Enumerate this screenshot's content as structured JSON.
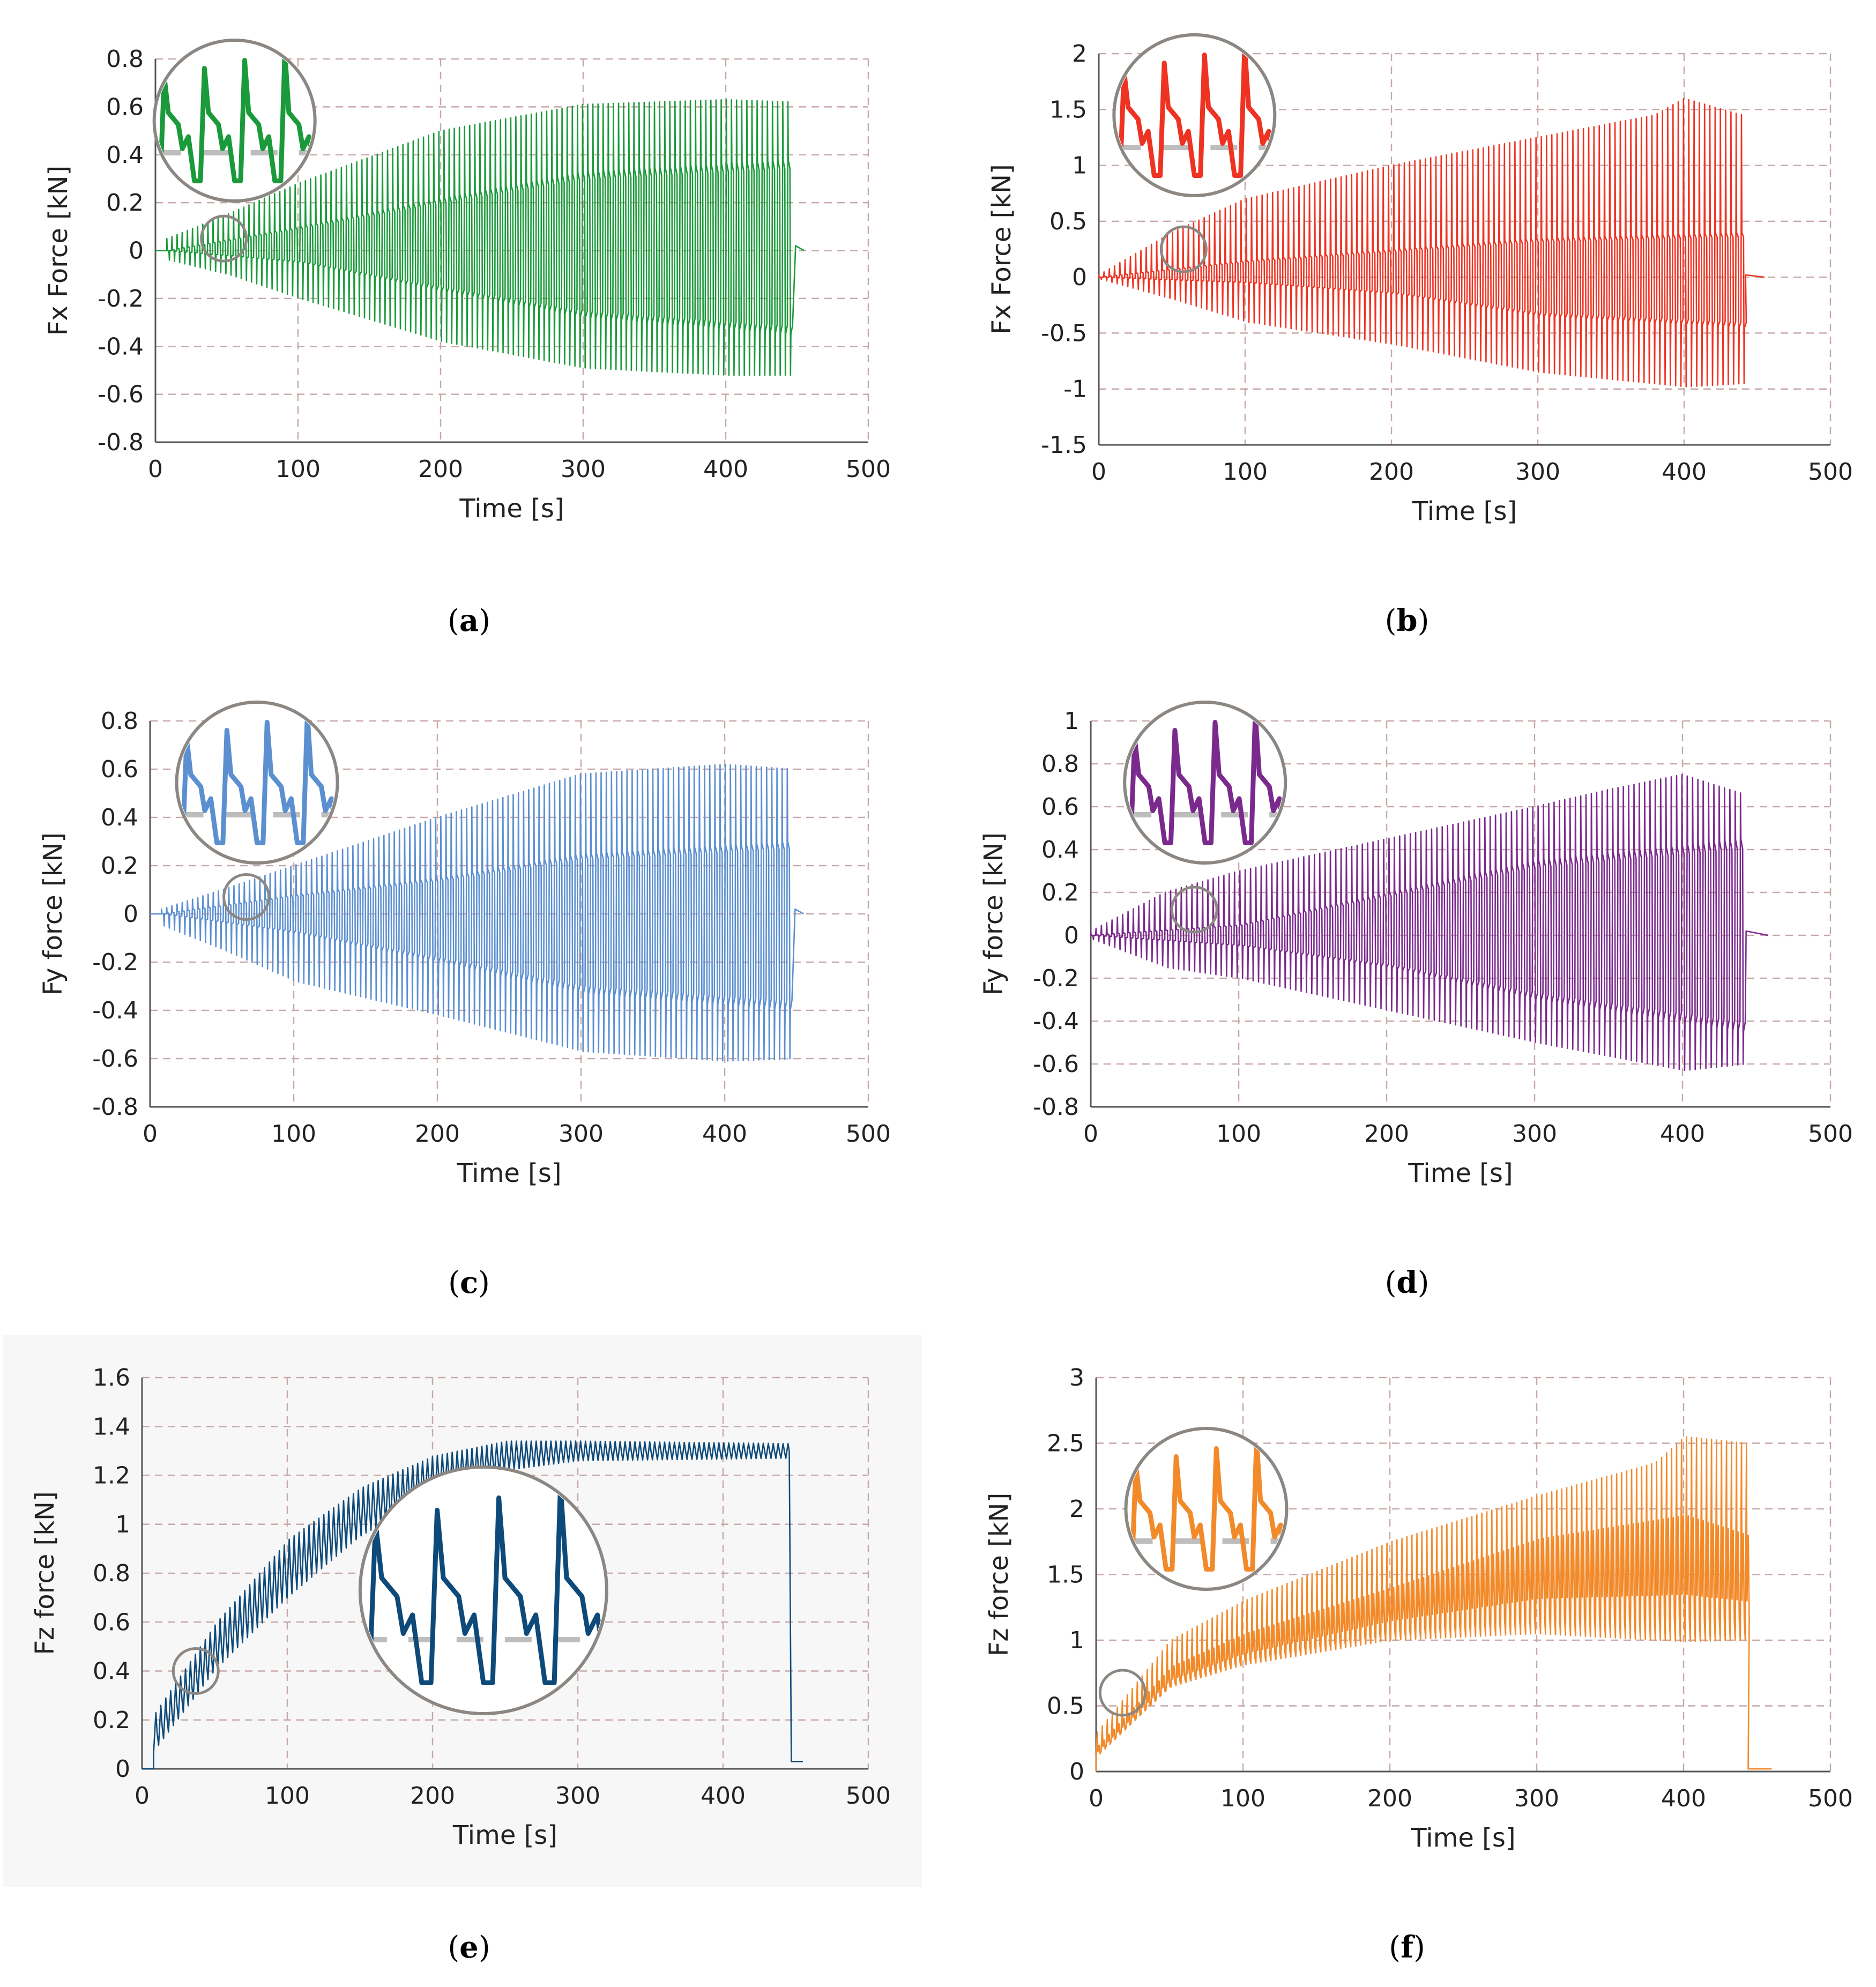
{
  "chart_data": [
    {
      "id": "a",
      "type": "line",
      "caption_letter": "a",
      "xlabel": "Time [s]",
      "ylabel": "Fx Force [kN]",
      "xlim": [
        0,
        500
      ],
      "ylim": [
        -0.8,
        0.8
      ],
      "xticks": [
        0,
        100,
        200,
        300,
        400,
        500
      ],
      "yticks": [
        -0.8,
        -0.6,
        -0.4,
        -0.2,
        0,
        0.2,
        0.4,
        0.6,
        0.8
      ],
      "color": "#1a9a3a",
      "grid": true,
      "signal": {
        "start": 8,
        "end": 447,
        "tail_end": 455,
        "envelope_upper": [
          [
            8,
            0.05
          ],
          [
            50,
            0.15
          ],
          [
            100,
            0.28
          ],
          [
            200,
            0.5
          ],
          [
            300,
            0.61
          ],
          [
            400,
            0.63
          ],
          [
            447,
            0.62
          ]
        ],
        "envelope_lower": [
          [
            8,
            -0.04
          ],
          [
            50,
            -0.1
          ],
          [
            100,
            -0.2
          ],
          [
            200,
            -0.38
          ],
          [
            300,
            -0.49
          ],
          [
            400,
            -0.52
          ],
          [
            447,
            -0.52
          ]
        ],
        "mid_upper": [
          [
            8,
            0.0
          ],
          [
            100,
            0.1
          ],
          [
            200,
            0.22
          ],
          [
            300,
            0.33
          ],
          [
            447,
            0.38
          ]
        ],
        "mid_lower": [
          [
            8,
            0.0
          ],
          [
            100,
            -0.05
          ],
          [
            200,
            -0.17
          ],
          [
            300,
            -0.28
          ],
          [
            447,
            -0.35
          ]
        ]
      },
      "inset": {
        "focus_x": 48,
        "focus_y": 0.05
      }
    },
    {
      "id": "b",
      "type": "line",
      "caption_letter": "b",
      "xlabel": "Time [s]",
      "ylabel": "Fx Force [kN]",
      "xlim": [
        0,
        500
      ],
      "ylim": [
        -1.5,
        2
      ],
      "xticks": [
        0,
        100,
        200,
        300,
        400,
        500
      ],
      "yticks": [
        -1.5,
        -1,
        -0.5,
        0,
        0.5,
        1,
        1.5,
        2
      ],
      "color": "#ee3322",
      "grid": true,
      "signal": {
        "start": 0,
        "end": 440,
        "tail_end": 455,
        "envelope_upper": [
          [
            0,
            0.02
          ],
          [
            50,
            0.4
          ],
          [
            100,
            0.7
          ],
          [
            200,
            1.0
          ],
          [
            300,
            1.25
          ],
          [
            380,
            1.45
          ],
          [
            400,
            1.6
          ],
          [
            440,
            1.45
          ]
        ],
        "envelope_lower": [
          [
            0,
            -0.02
          ],
          [
            50,
            -0.2
          ],
          [
            100,
            -0.4
          ],
          [
            200,
            -0.6
          ],
          [
            300,
            -0.85
          ],
          [
            400,
            -0.98
          ],
          [
            440,
            -0.95
          ]
        ],
        "mid_upper": [
          [
            0,
            0.0
          ],
          [
            100,
            0.15
          ],
          [
            200,
            0.25
          ],
          [
            300,
            0.35
          ],
          [
            440,
            0.4
          ]
        ],
        "mid_lower": [
          [
            0,
            0.0
          ],
          [
            100,
            -0.05
          ],
          [
            200,
            -0.15
          ],
          [
            300,
            -0.35
          ],
          [
            440,
            -0.45
          ]
        ]
      },
      "inset": {
        "focus_x": 58,
        "focus_y": 0.25
      }
    },
    {
      "id": "c",
      "type": "line",
      "caption_letter": "c",
      "xlabel": "Time [s]",
      "ylabel": "Fy force [kN]",
      "xlim": [
        0,
        500
      ],
      "ylim": [
        -0.8,
        0.8
      ],
      "xticks": [
        0,
        100,
        200,
        300,
        400,
        500
      ],
      "yticks": [
        -0.8,
        -0.6,
        -0.4,
        -0.2,
        0,
        0.2,
        0.4,
        0.6,
        0.8
      ],
      "color": "#5b8fd0",
      "grid": true,
      "signal": {
        "start": 8,
        "end": 447,
        "tail_end": 455,
        "envelope_upper": [
          [
            8,
            0.02
          ],
          [
            50,
            0.1
          ],
          [
            100,
            0.2
          ],
          [
            200,
            0.4
          ],
          [
            300,
            0.58
          ],
          [
            400,
            0.62
          ],
          [
            447,
            0.6
          ]
        ],
        "envelope_lower": [
          [
            8,
            -0.05
          ],
          [
            50,
            -0.15
          ],
          [
            100,
            -0.28
          ],
          [
            200,
            -0.42
          ],
          [
            300,
            -0.57
          ],
          [
            400,
            -0.61
          ],
          [
            447,
            -0.6
          ]
        ],
        "mid_upper": [
          [
            8,
            0.0
          ],
          [
            100,
            0.08
          ],
          [
            200,
            0.15
          ],
          [
            300,
            0.25
          ],
          [
            447,
            0.3
          ]
        ],
        "mid_lower": [
          [
            8,
            0.0
          ],
          [
            100,
            -0.08
          ],
          [
            200,
            -0.2
          ],
          [
            300,
            -0.33
          ],
          [
            447,
            -0.4
          ]
        ]
      },
      "inset": {
        "focus_x": 67,
        "focus_y": 0.07
      }
    },
    {
      "id": "d",
      "type": "line",
      "caption_letter": "d",
      "xlabel": "Time [s]",
      "ylabel": "Fy force [kN]",
      "xlim": [
        0,
        500
      ],
      "ylim": [
        -0.8,
        1
      ],
      "xticks": [
        0,
        100,
        200,
        300,
        400,
        500
      ],
      "yticks": [
        -0.8,
        -0.6,
        -0.4,
        -0.2,
        0,
        0.2,
        0.4,
        0.6,
        0.8,
        1
      ],
      "color": "#7a2a8c",
      "grid": true,
      "signal": {
        "start": 0,
        "end": 441,
        "tail_end": 458,
        "envelope_upper": [
          [
            0,
            0.02
          ],
          [
            50,
            0.2
          ],
          [
            100,
            0.3
          ],
          [
            200,
            0.45
          ],
          [
            300,
            0.6
          ],
          [
            350,
            0.68
          ],
          [
            400,
            0.75
          ],
          [
            441,
            0.66
          ]
        ],
        "envelope_lower": [
          [
            0,
            -0.02
          ],
          [
            50,
            -0.15
          ],
          [
            100,
            -0.2
          ],
          [
            200,
            -0.35
          ],
          [
            300,
            -0.5
          ],
          [
            400,
            -0.63
          ],
          [
            441,
            -0.6
          ]
        ],
        "mid_upper": [
          [
            0,
            0.0
          ],
          [
            100,
            0.05
          ],
          [
            200,
            0.2
          ],
          [
            300,
            0.35
          ],
          [
            441,
            0.45
          ]
        ],
        "mid_lower": [
          [
            0,
            0.0
          ],
          [
            100,
            -0.05
          ],
          [
            200,
            -0.15
          ],
          [
            300,
            -0.3
          ],
          [
            441,
            -0.45
          ]
        ]
      },
      "inset": {
        "focus_x": 70,
        "focus_y": 0.12
      }
    },
    {
      "id": "e",
      "type": "line",
      "caption_letter": "e",
      "xlabel": "Time [s]",
      "ylabel": "Fz force [kN]",
      "xlim": [
        0,
        500
      ],
      "ylim": [
        0,
        1.6
      ],
      "xticks": [
        0,
        100,
        200,
        300,
        400,
        500
      ],
      "yticks": [
        0,
        0.2,
        0.4,
        0.6,
        0.8,
        1,
        1.2,
        1.4,
        1.6
      ],
      "color": "#0d4a7a",
      "grid": true,
      "signal": {
        "start": 8,
        "end": 445,
        "tail_end": 455,
        "mean": [
          [
            8,
            0.15
          ],
          [
            50,
            0.5
          ],
          [
            100,
            0.82
          ],
          [
            150,
            1.05
          ],
          [
            200,
            1.2
          ],
          [
            250,
            1.28
          ],
          [
            300,
            1.3
          ],
          [
            400,
            1.3
          ],
          [
            440,
            1.3
          ]
        ],
        "amplitude": [
          [
            8,
            0.08
          ],
          [
            100,
            0.12
          ],
          [
            200,
            0.08
          ],
          [
            300,
            0.04
          ],
          [
            440,
            0.03
          ]
        ],
        "tail_value": 0.03
      },
      "inset": {
        "focus_x": 37,
        "focus_y": 0.4
      }
    },
    {
      "id": "f",
      "type": "line",
      "caption_letter": "f",
      "xlabel": "Time [s]",
      "ylabel": "Fz force [kN]",
      "xlim": [
        0,
        500
      ],
      "ylim": [
        0,
        3
      ],
      "xticks": [
        0,
        100,
        200,
        300,
        400,
        500
      ],
      "yticks": [
        0,
        0.5,
        1,
        1.5,
        2,
        2.5,
        3
      ],
      "color": "#f28a2a",
      "grid": true,
      "signal": {
        "start": 0,
        "end": 442,
        "tail_end": 460,
        "mean": [
          [
            0,
            0.15
          ],
          [
            50,
            0.7
          ],
          [
            100,
            0.9
          ],
          [
            200,
            1.15
          ],
          [
            300,
            1.32
          ],
          [
            400,
            1.35
          ],
          [
            442,
            1.3
          ]
        ],
        "peak_upper": [
          [
            0,
            0.3
          ],
          [
            50,
            1.0
          ],
          [
            100,
            1.3
          ],
          [
            200,
            1.75
          ],
          [
            300,
            2.1
          ],
          [
            380,
            2.35
          ],
          [
            400,
            2.55
          ],
          [
            442,
            2.5
          ]
        ],
        "spread": [
          [
            0,
            0.05
          ],
          [
            100,
            0.15
          ],
          [
            200,
            0.25
          ],
          [
            300,
            0.45
          ],
          [
            400,
            0.6
          ],
          [
            442,
            0.5
          ]
        ],
        "tail_value": 0.02
      },
      "inset": {
        "focus_x": 18,
        "focus_y": 0.6
      }
    }
  ]
}
